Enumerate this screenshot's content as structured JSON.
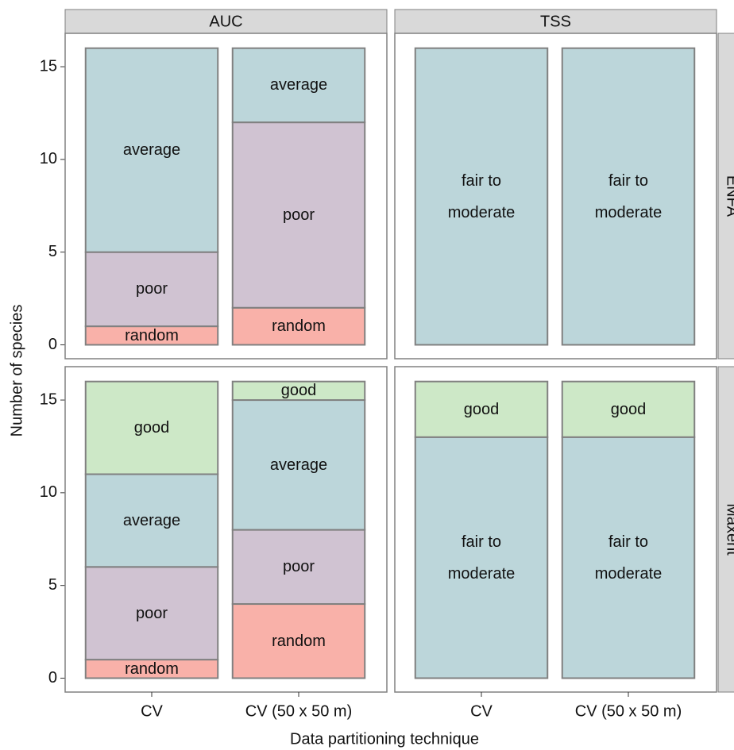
{
  "chart_data": {
    "type": "bar",
    "stacked": true,
    "xlabel": "Data partitioning technique",
    "ylabel": "Number of species",
    "categories": [
      "CV",
      "CV (50 x 50 m)"
    ],
    "col_facets": [
      "AUC",
      "TSS"
    ],
    "row_facets": [
      "ENFA",
      "Maxent"
    ],
    "ylim": [
      -0.75,
      16.8
    ],
    "yticks": [
      0,
      5,
      10,
      15
    ],
    "outline": "#808080",
    "panels": [
      [
        {
          "series": [
            {
              "name": "random",
              "color": "#f9b1a9",
              "values": [
                1,
                2
              ]
            },
            {
              "name": "poor",
              "color": "#d0c3d2",
              "values": [
                4,
                10
              ]
            },
            {
              "name": "average",
              "color": "#bcd6da",
              "values": [
                11,
                4
              ]
            }
          ]
        },
        {
          "series": [
            {
              "name": "fair to moderate",
              "color": "#bcd6da",
              "values": [
                16,
                16
              ]
            }
          ]
        }
      ],
      [
        {
          "series": [
            {
              "name": "random",
              "color": "#f9b1a9",
              "values": [
                1,
                4
              ]
            },
            {
              "name": "poor",
              "color": "#d0c3d2",
              "values": [
                5,
                4
              ]
            },
            {
              "name": "average",
              "color": "#bcd6da",
              "values": [
                5,
                7
              ]
            },
            {
              "name": "good",
              "color": "#cde8c7",
              "values": [
                5,
                1
              ]
            }
          ]
        },
        {
          "series": [
            {
              "name": "fair to moderate",
              "color": "#bcd6da",
              "values": [
                13,
                13
              ]
            },
            {
              "name": "good",
              "color": "#cde8c7",
              "values": [
                3,
                3
              ]
            }
          ]
        }
      ]
    ]
  }
}
